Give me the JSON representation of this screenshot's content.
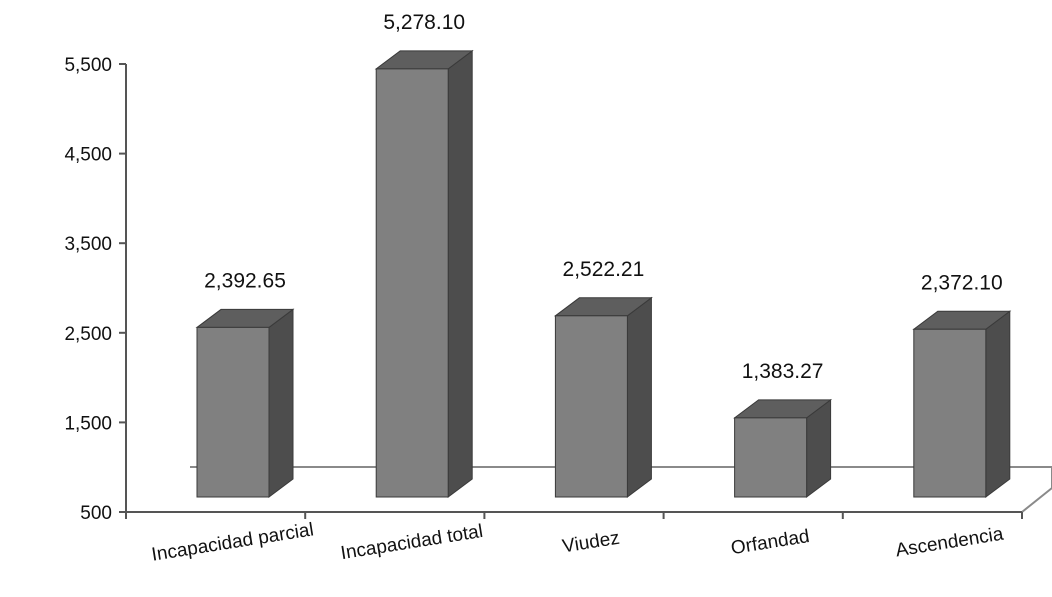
{
  "chart_data": {
    "type": "bar",
    "title": "",
    "xlabel": "",
    "ylabel": "",
    "categories": [
      "Incapacidad parcial",
      "Incapacidad total",
      "Viudez",
      "Orfandad",
      "Ascendencia"
    ],
    "values": [
      2392.65,
      5278.1,
      2522.21,
      1383.27,
      2372.1
    ],
    "value_labels": [
      "2,392.65",
      "5,278.10",
      "2,522.21",
      "1,383.27",
      "2,372.10"
    ],
    "yticks": [
      500,
      1500,
      2500,
      3500,
      4500,
      5500
    ],
    "ytick_labels": [
      "500",
      "1,500",
      "2,500",
      "3,500",
      "4,500",
      "5,500"
    ],
    "ylim": [
      500,
      5500
    ],
    "grid": false,
    "legend": "none",
    "style": "3d",
    "colors": {
      "bar_front": "#808080",
      "bar_top": "#5e5e5e",
      "bar_side": "#4d4d4d",
      "bar_edge": "#3a3a3a",
      "axis": "#555555",
      "floor": "#8a8a8a"
    }
  }
}
